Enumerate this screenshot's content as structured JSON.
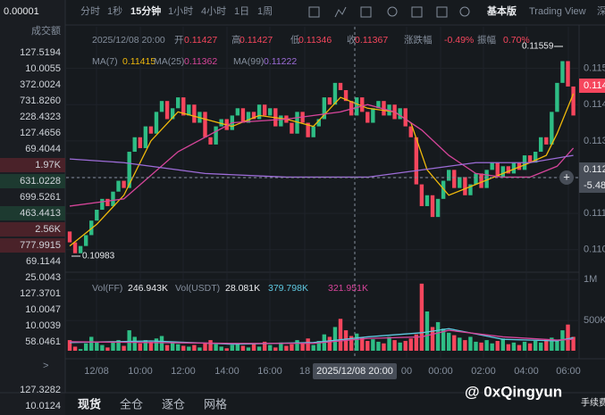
{
  "toolbar": {
    "intervals": [
      "分时",
      "1秒",
      "15分钟",
      "1小时",
      "4小时",
      "1日",
      "1周"
    ],
    "views": [
      "基本版",
      "Trading View",
      "深"
    ]
  },
  "sidebar": {
    "unit": "0.00001",
    "label": "成交额",
    "rows": [
      "127.5194",
      "10.0055",
      "372.0024",
      "731.8260",
      "228.4323",
      "127.4656",
      "69.4044",
      "1.97K",
      "631.0228",
      "699.5261",
      "463.4413",
      "2.56K",
      "777.9915",
      "69.1144",
      "25.0043",
      "127.3701",
      "10.0047",
      "10.0039",
      "58.0461"
    ],
    "more": ">",
    "rows2": [
      "127.3282",
      "10.0124"
    ]
  },
  "tabs": [
    "现货",
    "全仓",
    "逐仓",
    "网格"
  ],
  "watermark": "@ 0xQingyun",
  "watermark2": "手续费",
  "chart_data": {
    "type": "candlestick",
    "info": [
      "2025/12/08 20:00",
      "开",
      "0.11427",
      "高",
      "0.11427",
      "低",
      "0.11346",
      "收",
      "0.11367",
      "涨跌幅",
      "-0.49%",
      "振幅",
      "0.70%"
    ],
    "ylim": [
      0.1095,
      0.116
    ],
    "yticks": [
      0.115,
      0.114,
      0.113,
      0.112,
      0.111,
      {
        "value": 0.11,
        "label": "0.110"
      }
    ],
    "price_tag": "0.114",
    "cross_tag": "0.112",
    "cross_tag2": "-5.48",
    "cross_time": "2025/12/08 20:00",
    "annotations": {
      "low": "0.10983",
      "high": "0.11559"
    },
    "x_labels": [
      "12/08",
      "10:00",
      "12:00",
      "14:00",
      "16:00",
      "18",
      "00",
      "00:00",
      "02:00",
      "04:00",
      "06:00"
    ],
    "open": [
      0.1105,
      0.1102,
      0.1099,
      0.1101,
      0.1104,
      0.1108,
      0.1111,
      0.1114,
      0.1112,
      0.1116,
      0.1119,
      0.1117,
      0.1127,
      0.1131,
      0.1128,
      0.1134,
      0.1132,
      0.1138,
      0.1141,
      0.1136,
      0.1139,
      0.1142,
      0.1137,
      0.114,
      0.1135,
      0.1138,
      0.1131,
      0.1129,
      0.1134,
      0.1136,
      0.1133,
      0.1137,
      0.1139,
      0.1135,
      0.1138,
      0.1136,
      0.114,
      0.1137,
      0.1139,
      0.1134,
      0.1137,
      0.1135,
      0.1132,
      0.1138,
      0.1135,
      0.1131,
      0.1134,
      0.1136,
      0.1142,
      0.114,
      0.1146,
      0.1144,
      0.1141,
      0.1137,
      0.1142,
      0.1138,
      0.1135,
      0.1139,
      0.1141,
      0.1137,
      0.114,
      0.1136,
      0.1139,
      0.1134,
      0.1131,
      0.1118,
      0.1112,
      0.1115,
      0.1109,
      0.1114,
      0.1119,
      0.1122,
      0.1117,
      0.112,
      0.1115,
      0.1118,
      0.1121,
      0.1117,
      0.1122,
      0.1124,
      0.112,
      0.1123,
      0.1121,
      0.1124,
      0.1122,
      0.1126,
      0.1124,
      0.1127,
      0.1131,
      0.1129,
      0.1138,
      0.1146,
      0.1152,
      0.1145
    ],
    "close": [
      0.1102,
      0.1099,
      0.1101,
      0.1104,
      0.1108,
      0.1111,
      0.1114,
      0.1112,
      0.1116,
      0.1119,
      0.1117,
      0.1127,
      0.1131,
      0.1128,
      0.1134,
      0.1132,
      0.1138,
      0.1141,
      0.1136,
      0.1139,
      0.1142,
      0.1137,
      0.114,
      0.1135,
      0.1138,
      0.1131,
      0.1129,
      0.1134,
      0.1136,
      0.1133,
      0.1137,
      0.1139,
      0.1135,
      0.1138,
      0.1136,
      0.114,
      0.1137,
      0.1139,
      0.1134,
      0.1137,
      0.1135,
      0.1132,
      0.1138,
      0.1135,
      0.1131,
      0.1134,
      0.1136,
      0.1142,
      0.114,
      0.1146,
      0.1144,
      0.1141,
      0.1137,
      0.1142,
      0.1138,
      0.1135,
      0.1139,
      0.1141,
      0.1137,
      0.114,
      0.1136,
      0.1139,
      0.1134,
      0.1131,
      0.1118,
      0.1112,
      0.1115,
      0.1109,
      0.1114,
      0.1119,
      0.1122,
      0.1117,
      0.112,
      0.1115,
      0.1118,
      0.1121,
      0.1117,
      0.1122,
      0.1124,
      0.112,
      0.1123,
      0.1121,
      0.1124,
      0.1122,
      0.1126,
      0.1124,
      0.1127,
      0.1131,
      0.1129,
      0.1138,
      0.1146,
      0.1152,
      0.1145,
      0.1137
    ],
    "up_color": "#2ebd85",
    "down_color": "#f6465d",
    "ma": [
      {
        "name": "MA(7)",
        "legend_value": "0.11415",
        "color": "#f0b90b",
        "x": [
          0,
          5,
          10,
          15,
          20,
          25,
          30,
          35,
          40,
          45,
          50,
          55,
          60,
          63,
          66,
          70,
          75,
          80,
          85,
          88,
          90,
          93
        ],
        "values": [
          0.1101,
          0.1107,
          0.1115,
          0.113,
          0.1138,
          0.1136,
          0.1134,
          0.1137,
          0.1136,
          0.1134,
          0.1142,
          0.1139,
          0.1138,
          0.1135,
          0.1122,
          0.1115,
          0.1118,
          0.1121,
          0.1124,
          0.1126,
          0.1132,
          0.1143
        ]
      },
      {
        "name": "MA(25)",
        "legend_value": "0.11362",
        "color": "#d6459a",
        "x": [
          0,
          10,
          20,
          30,
          40,
          50,
          55,
          60,
          65,
          70,
          75,
          80,
          85,
          90,
          93
        ],
        "values": [
          0.1112,
          0.1114,
          0.1127,
          0.1135,
          0.1136,
          0.1138,
          0.114,
          0.1138,
          0.1133,
          0.1126,
          0.1121,
          0.112,
          0.112,
          0.1123,
          0.1128
        ]
      },
      {
        "name": "MA(99)",
        "legend_value": "0.11222",
        "color": "#9d6cd8",
        "x": [
          0,
          10,
          25,
          40,
          55,
          65,
          75,
          85,
          93
        ],
        "values": [
          0.1125,
          0.1124,
          0.1121,
          0.112,
          0.112,
          0.1122,
          0.1124,
          0.1124,
          0.1126
        ]
      }
    ],
    "volume": {
      "ylim": [
        130000,
        1090000
      ],
      "yticks": [
        {
          "value": 1000000,
          "label": "1M"
        },
        {
          "value": 500000,
          "label": "500K"
        }
      ],
      "legend": [
        {
          "name": "Vol(FF)",
          "value": "246.943K"
        },
        {
          "name": "Vol(USDT)",
          "value": "28.081K"
        }
      ],
      "values": [
        260000,
        180000,
        150000,
        220000,
        300000,
        240000,
        200000,
        170000,
        230000,
        260000,
        190000,
        380000,
        300000,
        220000,
        260000,
        240000,
        280000,
        310000,
        200000,
        230000,
        210000,
        190000,
        180000,
        200000,
        170000,
        230000,
        260000,
        210000,
        180000,
        160000,
        200000,
        220000,
        190000,
        170000,
        210000,
        180000,
        240000,
        200000,
        170000,
        230000,
        190000,
        210000,
        260000,
        230000,
        280000,
        200000,
        250000,
        330000,
        300000,
        420000,
        520000,
        380000,
        310000,
        340000,
        290000,
        250000,
        270000,
        240000,
        220000,
        300000,
        260000,
        230000,
        250000,
        280000,
        330000,
        950000,
        610000,
        420000,
        480000,
        400000,
        350000,
        320000,
        290000,
        260000,
        300000,
        240000,
        230000,
        260000,
        220000,
        250000,
        280000,
        210000,
        230000,
        200000,
        240000,
        220000,
        250000,
        230000,
        270000,
        290000,
        260000,
        380000,
        450000,
        300000
      ],
      "ma": [
        {
          "legend_value": "379.798K",
          "color": "#5ec8e0",
          "x": [
            0,
            15,
            30,
            45,
            55,
            65,
            70,
            80,
            90,
            93
          ],
          "values": [
            230000,
            250000,
            210000,
            230000,
            300000,
            350000,
            400000,
            270000,
            250000,
            290000
          ]
        },
        {
          "legend_value": "321.951K",
          "color": "#d6459a",
          "x": [
            0,
            15,
            30,
            45,
            55,
            65,
            70,
            80,
            90,
            93
          ],
          "values": [
            240000,
            230000,
            220000,
            220000,
            280000,
            300000,
            380000,
            300000,
            260000,
            270000
          ]
        }
      ]
    }
  }
}
